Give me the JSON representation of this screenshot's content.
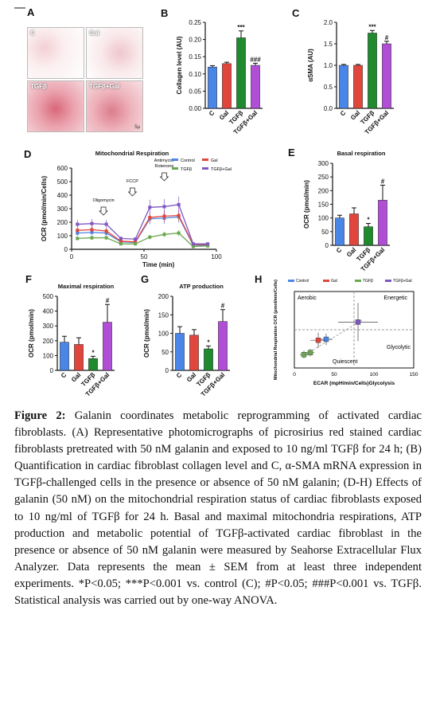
{
  "panels": {
    "A": {
      "label": "A",
      "images": [
        {
          "label": "C"
        },
        {
          "label": "Gal"
        },
        {
          "label": "TGFβ"
        },
        {
          "label": "TGFβ+Gal"
        }
      ],
      "scale_label": "5μ"
    },
    "B": {
      "label": "B",
      "ylabel": "Collagen level (AU)"
    },
    "C": {
      "label": "C",
      "ylabel": "αSMA (AU)"
    },
    "D": {
      "label": "D",
      "title": "Mitochondrial Respiration",
      "ylabel": "OCR (pmol/min/Cells)",
      "xlabel": "Time (min)",
      "annotations": [
        "Oligomycin",
        "FCCP",
        "Antimycin/ Rotenone"
      ]
    },
    "E": {
      "label": "E",
      "title": "Basal respiration",
      "ylabel": "OCR (pmol/min)"
    },
    "F": {
      "label": "F",
      "title": "Maximal respiration",
      "ylabel": "OCR (pmol/min)"
    },
    "G": {
      "label": "G",
      "title": "ATP production",
      "ylabel": "OCR (pmol/min)"
    },
    "H": {
      "label": "H",
      "ylabel": "Mitochondrial Respiration OCR (pmol/min/Cells)",
      "xlabel": "ECAR (mpH/min/Cells)Glycolysis",
      "quadrants": [
        "Aerobic",
        "Energetic",
        "Glycolytic",
        "Quiescent"
      ]
    }
  },
  "legend": [
    {
      "name": "Control",
      "color": "#4a86e8"
    },
    {
      "name": "Gal",
      "color": "#e0463c"
    },
    {
      "name": "TGFβ",
      "color": "#6aa84f"
    },
    {
      "name": "TGFβ+Gal",
      "color": "#7e57c2"
    }
  ],
  "bar_colors": [
    "#4a86e8",
    "#e0463c",
    "#1f8a2e",
    "#b04fd6"
  ],
  "chart_data": [
    {
      "type": "bar",
      "panel": "B",
      "categories": [
        "C",
        "Gal",
        "TGFβ",
        "TGFβ+Gal"
      ],
      "values": [
        0.12,
        0.13,
        0.205,
        0.125
      ],
      "errors": [
        0.004,
        0.004,
        0.02,
        0.006
      ],
      "sig": [
        "",
        "",
        "***",
        "###"
      ],
      "ylabel": "Collagen level (AU)",
      "ylim": [
        0,
        0.25
      ],
      "yticks": [
        "0.00",
        "0.05",
        "0.10",
        "0.15",
        "0.20",
        "0.25"
      ]
    },
    {
      "type": "bar",
      "panel": "C",
      "categories": [
        "C",
        "Gal",
        "TGFβ",
        "TGFβ+Gal"
      ],
      "values": [
        1.0,
        1.0,
        1.75,
        1.5
      ],
      "errors": [
        0.02,
        0.02,
        0.06,
        0.06
      ],
      "sig": [
        "",
        "",
        "***",
        "#"
      ],
      "ylabel": "αSMA (AU)",
      "ylim": [
        0,
        2.0
      ],
      "yticks": [
        "0.0",
        "0.5",
        "1.0",
        "1.5",
        "2.0"
      ]
    },
    {
      "type": "line",
      "panel": "D",
      "title": "Mitochondrial Respiration",
      "xlabel": "Time (min)",
      "ylabel": "OCR (pmol/min/Cells)",
      "x": [
        4,
        14,
        24,
        34,
        44,
        54,
        64,
        74,
        84,
        94
      ],
      "xlim": [
        0,
        100
      ],
      "xticks": [
        "0",
        "50",
        "100"
      ],
      "ylim": [
        0,
        600
      ],
      "yticks": [
        "0",
        "100",
        "200",
        "300",
        "400",
        "500",
        "600"
      ],
      "series": [
        {
          "name": "Control",
          "values": [
            120,
            125,
            120,
            55,
            50,
            225,
            230,
            240,
            30,
            30
          ]
        },
        {
          "name": "Gal",
          "values": [
            140,
            145,
            135,
            60,
            55,
            235,
            245,
            250,
            35,
            35
          ]
        },
        {
          "name": "TGFβ",
          "values": [
            80,
            85,
            85,
            40,
            40,
            90,
            110,
            120,
            20,
            25
          ]
        },
        {
          "name": "TGFβ+Gal",
          "values": [
            185,
            190,
            185,
            80,
            75,
            310,
            315,
            330,
            40,
            40
          ]
        }
      ]
    },
    {
      "type": "bar",
      "panel": "E",
      "title": "Basal respiration",
      "categories": [
        "C",
        "Gal",
        "TGFβ",
        "TGFβ+Gal"
      ],
      "values": [
        100,
        115,
        68,
        165
      ],
      "errors": [
        10,
        22,
        12,
        55
      ],
      "sig": [
        "",
        "",
        "*",
        "#"
      ],
      "ylabel": "OCR (pmol/min)",
      "ylim": [
        0,
        300
      ],
      "yticks": [
        "0",
        "50",
        "100",
        "150",
        "200",
        "250",
        "300"
      ]
    },
    {
      "type": "bar",
      "panel": "F",
      "title": "Maximal respiration",
      "categories": [
        "C",
        "Gal",
        "TGFβ",
        "TGFβ+Gal"
      ],
      "values": [
        190,
        175,
        80,
        325
      ],
      "errors": [
        40,
        45,
        15,
        120
      ],
      "sig": [
        "",
        "",
        "*",
        "#"
      ],
      "ylabel": "OCR (pmol/min)",
      "ylim": [
        0,
        500
      ],
      "yticks": [
        "0",
        "100",
        "200",
        "300",
        "400",
        "500"
      ]
    },
    {
      "type": "bar",
      "panel": "G",
      "title": "ATP production",
      "categories": [
        "C",
        "Gal",
        "TGFβ",
        "TGFβ+Gal"
      ],
      "values": [
        100,
        95,
        58,
        132
      ],
      "errors": [
        18,
        15,
        8,
        32
      ],
      "sig": [
        "",
        "",
        "*",
        "#"
      ],
      "ylabel": "OCR (pmol/min)",
      "ylim": [
        0,
        200
      ],
      "yticks": [
        "0",
        "50",
        "100",
        "150",
        "200"
      ]
    },
    {
      "type": "scatter",
      "panel": "H",
      "xlabel": "ECAR (mpH/min/Cells)Glycolysis",
      "ylabel": "Mitochondrial Respiration OCR (pmol/min/Cells)",
      "xlim": [
        0,
        150
      ],
      "ylim": [
        0,
        800
      ],
      "xticks": [
        "0",
        "50",
        "100",
        "150"
      ],
      "series": [
        {
          "name": "Control",
          "points": [
            [
              40,
              300
            ]
          ],
          "xerr": [
            8
          ],
          "yerr": [
            60
          ]
        },
        {
          "name": "Gal",
          "points": [
            [
              30,
              290
            ]
          ],
          "xerr": [
            10
          ],
          "yerr": [
            80
          ]
        },
        {
          "name": "TGFβ",
          "points": [
            [
              12,
              140
            ],
            [
              20,
              160
            ]
          ],
          "xerr": [
            5,
            5
          ],
          "yerr": [
            40,
            40
          ]
        },
        {
          "name": "TGFβ+Gal",
          "points": [
            [
              80,
              480
            ]
          ],
          "xerr": [
            25
          ],
          "yerr": [
            200
          ]
        }
      ]
    }
  ],
  "caption": {
    "fig_label": "Figure 2:",
    "text": " Galanin coordinates metabolic reprogramming of activated cardiac fibroblasts. (A) Representative photomicrographs of picrosirius red stained cardiac fibroblasts pretreated with 50 nM galanin and exposed to 10 ng/ml TGFβ for 24 h; (B) Quantification in cardiac fibroblast collagen level and C, α-SMA mRNA expression in TGFβ-challenged cells in the presence or absence of 50 nM galanin; (D-H) Effects of galanin (50 nM) on the mitochondrial respiration status of cardiac fibroblasts exposed to 10 ng/ml of TGFβ for 24 h. Basal and maximal mitochondria respirations, ATP production and metabolic potential of TGFβ-activated cardiac fibroblast in the presence or absence of 50 nM galanin were measured by Seahorse Extracellular Flux Analyzer. Data represents the mean ± SEM from at least three independent experiments. *P<0.05; ***P<0.001 vs. control (C); #P<0.05; ###P<0.001 vs. TGFβ. Statistical analysis was carried out by one-way ANOVA."
  }
}
